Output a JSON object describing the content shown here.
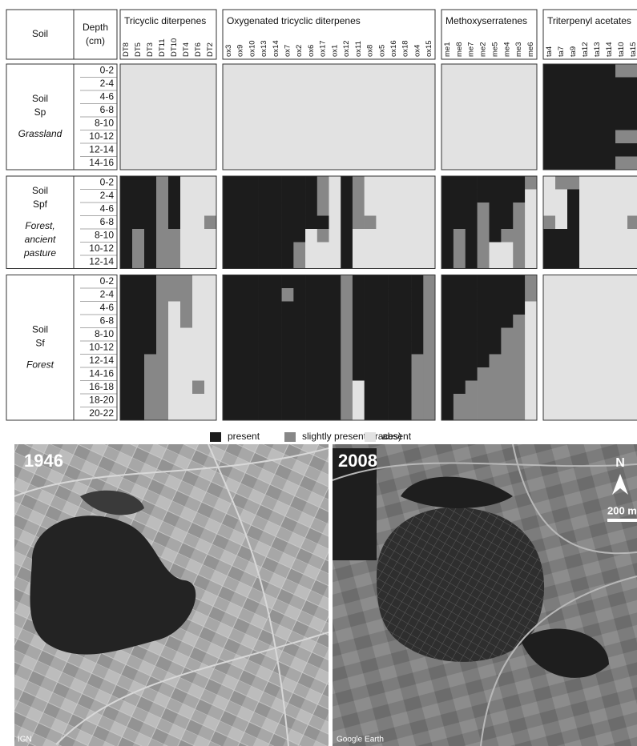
{
  "heatmap": {
    "header": {
      "soil": "Soil",
      "depth": [
        "Depth",
        "(cm)"
      ]
    },
    "groups": [
      {
        "name": "Tricyclic diterpenes",
        "columns": [
          "DT8",
          "DT5",
          "DT3",
          "DT11",
          "DT10",
          "DT4",
          "DT6",
          "DT2"
        ]
      },
      {
        "name": "Oxygenated tricyclic diterpenes",
        "columns": [
          "ox3",
          "ox9",
          "ox10",
          "ox13",
          "ox14",
          "ox7",
          "ox2",
          "ox6",
          "ox17",
          "ox1",
          "ox12",
          "ox11",
          "ox8",
          "ox5",
          "ox16",
          "ox18",
          "ox4",
          "ox15"
        ]
      },
      {
        "name": "Methoxyserratenes",
        "columns": [
          "me1",
          "me8",
          "me7",
          "me2",
          "me5",
          "me4",
          "me3",
          "me6"
        ]
      },
      {
        "name": "Triterpenyl acetates",
        "columns": [
          "ta4",
          "ta7",
          "ta9",
          "ta12",
          "ta13",
          "ta14",
          "ta10",
          "ta15"
        ]
      }
    ],
    "soils": [
      {
        "name_lines": [
          "Soil",
          "Sp"
        ],
        "use_lines": [
          "Grassland"
        ],
        "depths": [
          "0-2",
          "2-4",
          "4-6",
          "6-8",
          "8-10",
          "10-12",
          "12-14",
          "14-16"
        ],
        "cells": [
          [
            0,
            0,
            0,
            0,
            0,
            0,
            0,
            0,
            0,
            0,
            0,
            0,
            0,
            0,
            0,
            0,
            0,
            0,
            0,
            0,
            0,
            0,
            0,
            0,
            0,
            0,
            0,
            0,
            0,
            0,
            0,
            0,
            0,
            0,
            2,
            2,
            2,
            2,
            2,
            2,
            1,
            1
          ],
          [
            0,
            0,
            0,
            0,
            0,
            0,
            0,
            0,
            0,
            0,
            0,
            0,
            0,
            0,
            0,
            0,
            0,
            0,
            0,
            0,
            0,
            0,
            0,
            0,
            0,
            0,
            0,
            0,
            0,
            0,
            0,
            0,
            0,
            0,
            2,
            2,
            2,
            2,
            2,
            2,
            2,
            2
          ],
          [
            0,
            0,
            0,
            0,
            0,
            0,
            0,
            0,
            0,
            0,
            0,
            0,
            0,
            0,
            0,
            0,
            0,
            0,
            0,
            0,
            0,
            0,
            0,
            0,
            0,
            0,
            0,
            0,
            0,
            0,
            0,
            0,
            0,
            0,
            2,
            2,
            2,
            2,
            2,
            2,
            2,
            2
          ],
          [
            0,
            0,
            0,
            0,
            0,
            0,
            0,
            0,
            0,
            0,
            0,
            0,
            0,
            0,
            0,
            0,
            0,
            0,
            0,
            0,
            0,
            0,
            0,
            0,
            0,
            0,
            0,
            0,
            0,
            0,
            0,
            0,
            0,
            0,
            2,
            2,
            2,
            2,
            2,
            2,
            2,
            2
          ],
          [
            0,
            0,
            0,
            0,
            0,
            0,
            0,
            0,
            0,
            0,
            0,
            0,
            0,
            0,
            0,
            0,
            0,
            0,
            0,
            0,
            0,
            0,
            0,
            0,
            0,
            0,
            0,
            0,
            0,
            0,
            0,
            0,
            0,
            0,
            2,
            2,
            2,
            2,
            2,
            2,
            2,
            2
          ],
          [
            0,
            0,
            0,
            0,
            0,
            0,
            0,
            0,
            0,
            0,
            0,
            0,
            0,
            0,
            0,
            0,
            0,
            0,
            0,
            0,
            0,
            0,
            0,
            0,
            0,
            0,
            0,
            0,
            0,
            0,
            0,
            0,
            0,
            0,
            2,
            2,
            2,
            2,
            2,
            2,
            1,
            1
          ],
          [
            0,
            0,
            0,
            0,
            0,
            0,
            0,
            0,
            0,
            0,
            0,
            0,
            0,
            0,
            0,
            0,
            0,
            0,
            0,
            0,
            0,
            0,
            0,
            0,
            0,
            0,
            0,
            0,
            0,
            0,
            0,
            0,
            0,
            0,
            2,
            2,
            2,
            2,
            2,
            2,
            2,
            2
          ],
          [
            0,
            0,
            0,
            0,
            0,
            0,
            0,
            0,
            0,
            0,
            0,
            0,
            0,
            0,
            0,
            0,
            0,
            0,
            0,
            0,
            0,
            0,
            0,
            0,
            0,
            0,
            0,
            0,
            0,
            0,
            0,
            0,
            0,
            0,
            2,
            2,
            2,
            2,
            2,
            2,
            1,
            1
          ]
        ]
      },
      {
        "name_lines": [
          "Soil",
          "Spf"
        ],
        "use_lines": [
          "Forest,",
          "ancient",
          "pasture"
        ],
        "depths": [
          "0-2",
          "2-4",
          "4-6",
          "6-8",
          "8-10",
          "10-12",
          "12-14"
        ],
        "cells": [
          [
            2,
            2,
            2,
            1,
            2,
            0,
            0,
            0,
            2,
            2,
            2,
            2,
            2,
            2,
            2,
            2,
            1,
            0,
            2,
            1,
            0,
            0,
            0,
            0,
            0,
            0,
            2,
            2,
            2,
            2,
            2,
            2,
            2,
            1,
            0,
            1,
            1,
            0,
            0,
            0,
            0,
            0
          ],
          [
            2,
            2,
            2,
            1,
            2,
            0,
            0,
            0,
            2,
            2,
            2,
            2,
            2,
            2,
            2,
            2,
            1,
            0,
            2,
            1,
            0,
            0,
            0,
            0,
            0,
            0,
            2,
            2,
            2,
            2,
            2,
            2,
            2,
            0,
            0,
            0,
            2,
            0,
            0,
            0,
            0,
            0
          ],
          [
            2,
            2,
            2,
            1,
            2,
            0,
            0,
            0,
            2,
            2,
            2,
            2,
            2,
            2,
            2,
            2,
            1,
            0,
            2,
            1,
            0,
            0,
            0,
            0,
            0,
            0,
            2,
            2,
            2,
            1,
            2,
            2,
            1,
            0,
            0,
            0,
            2,
            0,
            0,
            0,
            0,
            0
          ],
          [
            2,
            2,
            2,
            1,
            2,
            0,
            0,
            1,
            2,
            2,
            2,
            2,
            2,
            2,
            2,
            2,
            2,
            0,
            2,
            1,
            1,
            0,
            0,
            0,
            0,
            0,
            2,
            2,
            2,
            1,
            2,
            2,
            1,
            0,
            1,
            0,
            2,
            0,
            0,
            0,
            0,
            1
          ],
          [
            2,
            1,
            2,
            1,
            1,
            0,
            0,
            0,
            2,
            2,
            2,
            2,
            2,
            2,
            2,
            0,
            1,
            0,
            2,
            0,
            0,
            0,
            0,
            0,
            0,
            0,
            2,
            1,
            2,
            1,
            2,
            1,
            1,
            0,
            2,
            2,
            2,
            0,
            0,
            0,
            0,
            0
          ],
          [
            2,
            1,
            2,
            1,
            1,
            0,
            0,
            0,
            2,
            2,
            2,
            2,
            2,
            2,
            1,
            0,
            0,
            0,
            2,
            0,
            0,
            0,
            0,
            0,
            0,
            0,
            2,
            1,
            2,
            1,
            0,
            0,
            1,
            0,
            2,
            2,
            2,
            0,
            0,
            0,
            0,
            0
          ],
          [
            2,
            1,
            2,
            1,
            1,
            0,
            0,
            0,
            2,
            2,
            2,
            2,
            2,
            2,
            1,
            0,
            0,
            0,
            2,
            0,
            0,
            0,
            0,
            0,
            0,
            0,
            2,
            1,
            2,
            1,
            0,
            0,
            1,
            0,
            2,
            2,
            2,
            0,
            0,
            0,
            0,
            0
          ]
        ]
      },
      {
        "name_lines": [
          "Soil",
          "Sf"
        ],
        "use_lines": [
          "Forest"
        ],
        "depths": [
          "0-2",
          "2-4",
          "4-6",
          "6-8",
          "8-10",
          "10-12",
          "12-14",
          "14-16",
          "16-18",
          "18-20",
          "20-22"
        ],
        "cells": [
          [
            2,
            2,
            2,
            1,
            1,
            1,
            0,
            0,
            2,
            2,
            2,
            2,
            2,
            2,
            2,
            2,
            2,
            2,
            1,
            2,
            2,
            2,
            2,
            2,
            2,
            1,
            2,
            2,
            2,
            2,
            2,
            2,
            2,
            1,
            0,
            0,
            0,
            0,
            0,
            0,
            0,
            0
          ],
          [
            2,
            2,
            2,
            1,
            1,
            1,
            0,
            0,
            2,
            2,
            2,
            2,
            2,
            1,
            2,
            2,
            2,
            2,
            1,
            2,
            2,
            2,
            2,
            2,
            2,
            1,
            2,
            2,
            2,
            2,
            2,
            2,
            2,
            1,
            0,
            0,
            0,
            0,
            0,
            0,
            0,
            0
          ],
          [
            2,
            2,
            2,
            1,
            0,
            1,
            0,
            0,
            2,
            2,
            2,
            2,
            2,
            2,
            2,
            2,
            2,
            2,
            1,
            2,
            2,
            2,
            2,
            2,
            2,
            1,
            2,
            2,
            2,
            2,
            2,
            2,
            2,
            0,
            0,
            0,
            0,
            0,
            0,
            0,
            0,
            0
          ],
          [
            2,
            2,
            2,
            1,
            0,
            1,
            0,
            0,
            2,
            2,
            2,
            2,
            2,
            2,
            2,
            2,
            2,
            2,
            1,
            2,
            2,
            2,
            2,
            2,
            2,
            1,
            2,
            2,
            2,
            2,
            2,
            2,
            1,
            0,
            0,
            0,
            0,
            0,
            0,
            0,
            0,
            0
          ],
          [
            2,
            2,
            2,
            1,
            0,
            0,
            0,
            0,
            2,
            2,
            2,
            2,
            2,
            2,
            2,
            2,
            2,
            2,
            1,
            2,
            2,
            2,
            2,
            2,
            2,
            1,
            2,
            2,
            2,
            2,
            2,
            1,
            1,
            0,
            0,
            0,
            0,
            0,
            0,
            0,
            0,
            0
          ],
          [
            2,
            2,
            2,
            1,
            0,
            0,
            0,
            0,
            2,
            2,
            2,
            2,
            2,
            2,
            2,
            2,
            2,
            2,
            1,
            2,
            2,
            2,
            2,
            2,
            2,
            1,
            2,
            2,
            2,
            2,
            2,
            1,
            1,
            0,
            0,
            0,
            0,
            0,
            0,
            0,
            0,
            0
          ],
          [
            2,
            2,
            1,
            1,
            0,
            0,
            0,
            0,
            2,
            2,
            2,
            2,
            2,
            2,
            2,
            2,
            2,
            2,
            1,
            2,
            2,
            2,
            2,
            2,
            1,
            1,
            2,
            2,
            2,
            2,
            1,
            1,
            1,
            0,
            0,
            0,
            0,
            0,
            0,
            0,
            0,
            0
          ],
          [
            2,
            2,
            1,
            1,
            0,
            0,
            0,
            0,
            2,
            2,
            2,
            2,
            2,
            2,
            2,
            2,
            2,
            2,
            1,
            2,
            2,
            2,
            2,
            2,
            1,
            1,
            2,
            2,
            2,
            1,
            1,
            1,
            1,
            0,
            0,
            0,
            0,
            0,
            0,
            0,
            0,
            0
          ],
          [
            2,
            2,
            1,
            1,
            0,
            0,
            1,
            0,
            2,
            2,
            2,
            2,
            2,
            2,
            2,
            2,
            2,
            2,
            1,
            0,
            2,
            2,
            2,
            2,
            1,
            1,
            2,
            2,
            1,
            1,
            1,
            1,
            1,
            0,
            0,
            0,
            0,
            0,
            0,
            0,
            0,
            0
          ],
          [
            2,
            2,
            1,
            1,
            0,
            0,
            0,
            0,
            2,
            2,
            2,
            2,
            2,
            2,
            2,
            2,
            2,
            2,
            1,
            0,
            2,
            2,
            2,
            2,
            1,
            1,
            2,
            1,
            1,
            1,
            1,
            1,
            1,
            0,
            0,
            0,
            0,
            0,
            0,
            0,
            0,
            0
          ],
          [
            2,
            2,
            1,
            1,
            0,
            0,
            0,
            0,
            2,
            2,
            2,
            2,
            2,
            2,
            2,
            2,
            2,
            2,
            1,
            0,
            2,
            2,
            2,
            2,
            1,
            1,
            2,
            1,
            1,
            1,
            1,
            1,
            1,
            0,
            0,
            0,
            0,
            0,
            0,
            0,
            0,
            0
          ]
        ]
      }
    ],
    "legend": [
      {
        "code": 2,
        "label": "present",
        "color": "#1c1c1c"
      },
      {
        "code": 1,
        "label": "slightly present (traces)",
        "color": "#878787"
      },
      {
        "code": 0,
        "label": "absent",
        "color": "#e2e2e2"
      }
    ]
  },
  "photos": [
    {
      "year": "1946",
      "credit": "IGN"
    },
    {
      "year": "2008",
      "credit": "Google Earth",
      "north": "N",
      "scale": "200 m"
    }
  ]
}
